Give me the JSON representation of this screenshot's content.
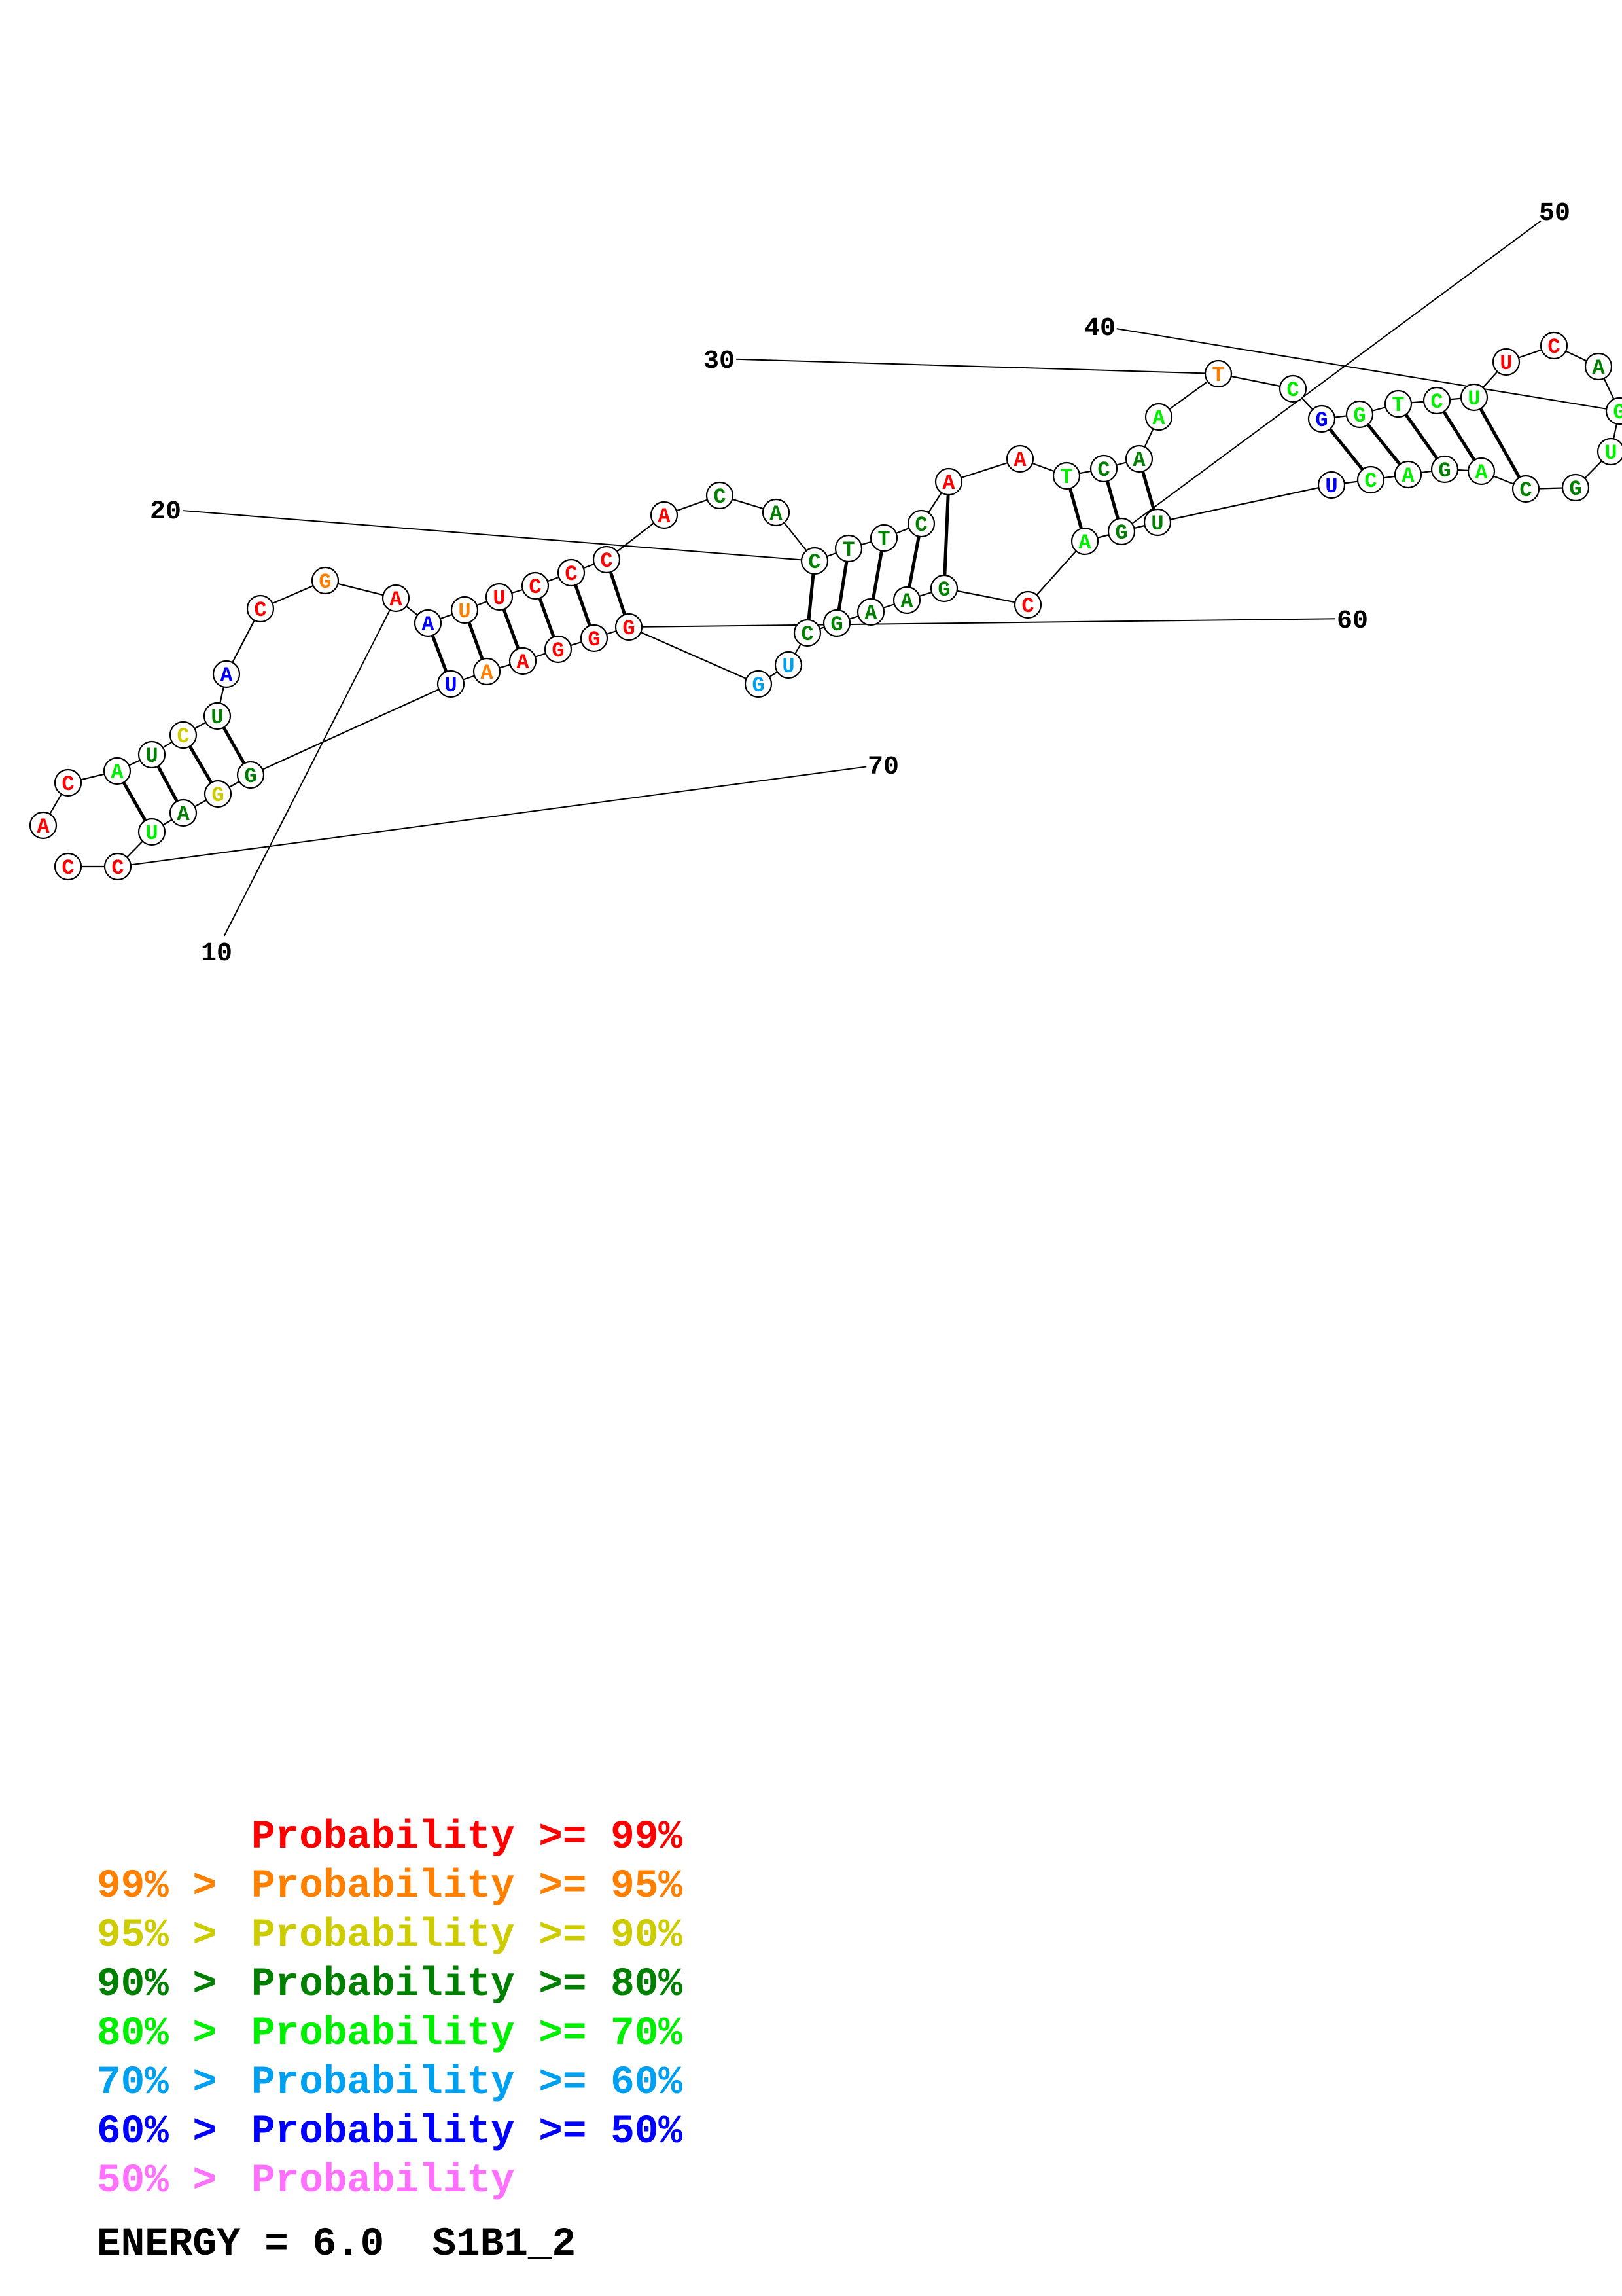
{
  "colors": {
    "p99": "#ff0000",
    "p95": "#ff8000",
    "p90": "#cccc00",
    "p80": "#008000",
    "p70": "#00ee00",
    "p60": "#00a0f0",
    "p50": "#0000ff",
    "plow": "#ff70ff"
  },
  "legend": [
    {
      "prefix": "",
      "label": "Probability >= 99%",
      "color": "p99"
    },
    {
      "prefix": "99% > ",
      "label": "Probability >= 95%",
      "color": "p95"
    },
    {
      "prefix": "95% > ",
      "label": "Probability >= 90%",
      "color": "p90"
    },
    {
      "prefix": "90% > ",
      "label": "Probability >= 80%",
      "color": "p80"
    },
    {
      "prefix": "80% > ",
      "label": "Probability >= 70%",
      "color": "p70"
    },
    {
      "prefix": "70% > ",
      "label": "Probability >= 60%",
      "color": "p60"
    },
    {
      "prefix": "60% > ",
      "label": "Probability >= 50%",
      "color": "p50"
    },
    {
      "prefix": "50% > ",
      "label": "Probability",
      "color": "plow"
    }
  ],
  "footer": {
    "energy_label": "ENERGY = 6.0",
    "structure_name": "S1B1_2"
  },
  "structure": {
    "position_labels": [
      "10",
      "20",
      "30",
      "40",
      "50",
      "60",
      "70"
    ],
    "nucleotides": [
      {
        "base": "A",
        "color": "p99"
      },
      {
        "base": "C",
        "color": "p99"
      },
      {
        "base": "A",
        "color": "p70"
      },
      {
        "base": "U",
        "color": "p80"
      },
      {
        "base": "C",
        "color": "p90"
      },
      {
        "base": "U",
        "color": "p80"
      },
      {
        "base": "A",
        "color": "p50"
      },
      {
        "base": "C",
        "color": "p99"
      },
      {
        "base": "G",
        "color": "p95"
      },
      {
        "base": "A",
        "color": "p99"
      },
      {
        "base": "A",
        "color": "p50"
      },
      {
        "base": "U",
        "color": "p95"
      },
      {
        "base": "U",
        "color": "p99"
      },
      {
        "base": "C",
        "color": "p99"
      },
      {
        "base": "C",
        "color": "p99"
      },
      {
        "base": "C",
        "color": "p99"
      },
      {
        "base": "A",
        "color": "p99"
      },
      {
        "base": "C",
        "color": "p80"
      },
      {
        "base": "A",
        "color": "p80"
      },
      {
        "base": "C",
        "color": "p80"
      },
      {
        "base": "T",
        "color": "p80"
      },
      {
        "base": "T",
        "color": "p80"
      },
      {
        "base": "C",
        "color": "p80"
      },
      {
        "base": "A",
        "color": "p99"
      },
      {
        "base": "A",
        "color": "p99"
      },
      {
        "base": "T",
        "color": "p70"
      },
      {
        "base": "C",
        "color": "p80"
      },
      {
        "base": "A",
        "color": "p80"
      },
      {
        "base": "A",
        "color": "p70"
      },
      {
        "base": "T",
        "color": "p95"
      },
      {
        "base": "C",
        "color": "p70"
      },
      {
        "base": "G",
        "color": "p50"
      },
      {
        "base": "G",
        "color": "p70"
      },
      {
        "base": "T",
        "color": "p70"
      },
      {
        "base": "C",
        "color": "p70"
      },
      {
        "base": "U",
        "color": "p70"
      },
      {
        "base": "U",
        "color": "p99"
      },
      {
        "base": "C",
        "color": "p99"
      },
      {
        "base": "A",
        "color": "p80"
      },
      {
        "base": "G",
        "color": "p70"
      },
      {
        "base": "U",
        "color": "p70"
      },
      {
        "base": "G",
        "color": "p80"
      },
      {
        "base": "C",
        "color": "p80"
      },
      {
        "base": "A",
        "color": "p70"
      },
      {
        "base": "G",
        "color": "p80"
      },
      {
        "base": "A",
        "color": "p70"
      },
      {
        "base": "C",
        "color": "p70"
      },
      {
        "base": "U",
        "color": "p50"
      },
      {
        "base": "U",
        "color": "p80"
      },
      {
        "base": "G",
        "color": "p80"
      },
      {
        "base": "A",
        "color": "p70"
      },
      {
        "base": "C",
        "color": "p99"
      },
      {
        "base": "G",
        "color": "p80"
      },
      {
        "base": "A",
        "color": "p80"
      },
      {
        "base": "A",
        "color": "p80"
      },
      {
        "base": "G",
        "color": "p80"
      },
      {
        "base": "C",
        "color": "p80"
      },
      {
        "base": "U",
        "color": "p60"
      },
      {
        "base": "G",
        "color": "p60"
      },
      {
        "base": "G",
        "color": "p99"
      },
      {
        "base": "G",
        "color": "p99"
      },
      {
        "base": "G",
        "color": "p99"
      },
      {
        "base": "A",
        "color": "p99"
      },
      {
        "base": "A",
        "color": "p95"
      },
      {
        "base": "U",
        "color": "p50"
      },
      {
        "base": "G",
        "color": "p80"
      },
      {
        "base": "G",
        "color": "p90"
      },
      {
        "base": "A",
        "color": "p80"
      },
      {
        "base": "U",
        "color": "p70"
      },
      {
        "base": "C",
        "color": "p99"
      },
      {
        "base": "C",
        "color": "p99"
      }
    ]
  }
}
